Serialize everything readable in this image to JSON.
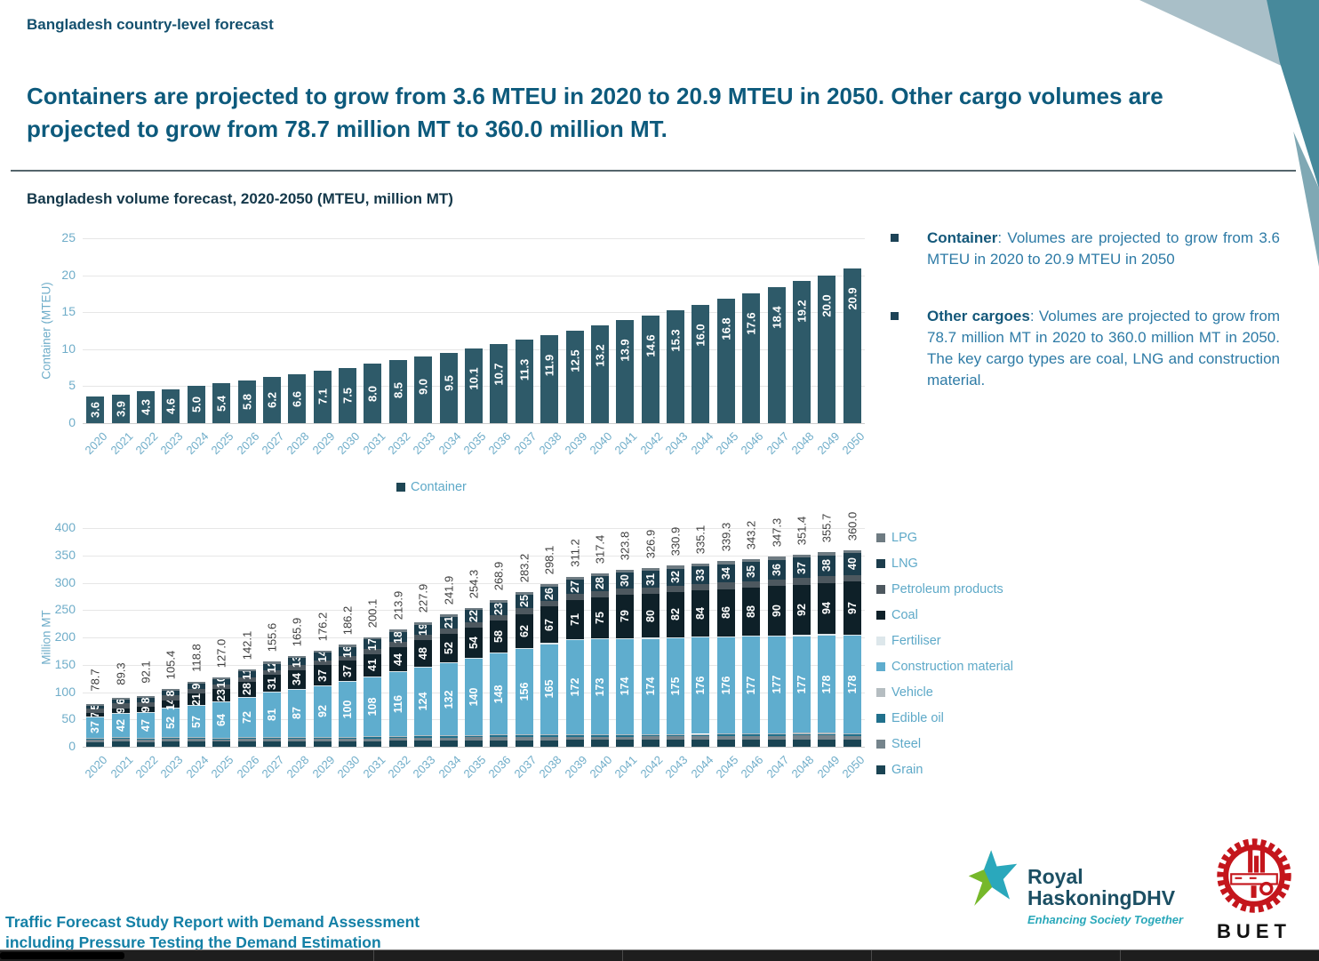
{
  "slide": {
    "eyebrow": "Bangladesh country-level forecast",
    "title": "Containers are projected to grow from 3.6 MTEU in 2020 to 20.9 MTEU in 2050. Other cargo volumes are projected to grow from 78.7 million MT to 360.0 million MT.",
    "section_title": "Bangladesh volume forecast, 2020-2050 (MTEU, million MT)"
  },
  "bullets": [
    {
      "lead": "Container",
      "text": ": Volumes are projected to grow from 3.6 MTEU in 2020 to 20.9 MTEU in 2050"
    },
    {
      "lead": "Other cargoes",
      "text": ": Volumes are projected to grow from 78.7 million MT in 2020 to 360.0 million MT in 2050. The key cargo types are coal, LNG and construction material."
    }
  ],
  "footer": {
    "line1": "Traffic Forecast Study Report with Demand Assessment",
    "line2": "including Pressure Testing the Demand Estimation"
  },
  "logos": {
    "rhdhv": {
      "name_top": "Royal",
      "name_bottom": "HaskoningDHV",
      "tagline": "Enhancing Society Together"
    },
    "buet": {
      "label": "BUET"
    }
  },
  "chart_data": [
    {
      "type": "bar",
      "title": "Bangladesh volume forecast, 2020-2050 (MTEU, million MT)",
      "ylabel": "Container (MTEU)",
      "xlabel": "",
      "ylim": [
        0,
        25
      ],
      "yticks": [
        0,
        5,
        10,
        15,
        20,
        25
      ],
      "grid": true,
      "legend": [
        "Container"
      ],
      "legend_position": "bottom",
      "bar_color": "#2e5a69",
      "categories": [
        "2020",
        "2021",
        "2022",
        "2023",
        "2024",
        "2025",
        "2026",
        "2027",
        "2028",
        "2029",
        "2030",
        "2031",
        "2032",
        "2033",
        "2034",
        "2035",
        "2036",
        "2037",
        "2038",
        "2039",
        "2040",
        "2041",
        "2042",
        "2043",
        "2044",
        "2045",
        "2046",
        "2047",
        "2048",
        "2049",
        "2050"
      ],
      "values": [
        3.6,
        3.9,
        4.3,
        4.6,
        5.0,
        5.4,
        5.8,
        6.2,
        6.6,
        7.1,
        7.5,
        8.0,
        8.5,
        9.0,
        9.5,
        10.1,
        10.7,
        11.3,
        11.9,
        12.5,
        13.2,
        13.9,
        14.6,
        15.3,
        16.0,
        16.8,
        17.6,
        18.4,
        19.2,
        20.0,
        20.9
      ]
    },
    {
      "type": "bar",
      "stacked": true,
      "ylabel": "Million MT",
      "xlabel": "",
      "ylim": [
        0,
        400
      ],
      "yticks": [
        0,
        50,
        100,
        150,
        200,
        250,
        300,
        350,
        400
      ],
      "grid": true,
      "legend_position": "right",
      "categories": [
        "2020",
        "2021",
        "2022",
        "2023",
        "2024",
        "2025",
        "2026",
        "2027",
        "2028",
        "2029",
        "2030",
        "2031",
        "2032",
        "2033",
        "2034",
        "2035",
        "2036",
        "2037",
        "2038",
        "2039",
        "2040",
        "2041",
        "2042",
        "2043",
        "2044",
        "2045",
        "2046",
        "2047",
        "2048",
        "2049",
        "2050"
      ],
      "totals": [
        78.7,
        89.3,
        92.1,
        105.4,
        118.8,
        127.0,
        142.1,
        155.6,
        165.9,
        176.2,
        186.2,
        200.1,
        213.9,
        227.9,
        241.9,
        254.3,
        268.9,
        283.2,
        298.1,
        311.2,
        317.4,
        323.8,
        326.9,
        330.9,
        335.1,
        339.3,
        343.2,
        347.3,
        351.4,
        355.7,
        360.0
      ],
      "series": [
        {
          "name": "Construction material",
          "labels_shown": true,
          "values": [
            37,
            42,
            47,
            52,
            57,
            64,
            72,
            81,
            87,
            92,
            100,
            108,
            116,
            124,
            132,
            140,
            148,
            156,
            165,
            172,
            173,
            174,
            174,
            175,
            176,
            176,
            177,
            177,
            177,
            178,
            178
          ]
        },
        {
          "name": "Coal",
          "labels_shown": true,
          "values": [
            7,
            9,
            9,
            14,
            21,
            23,
            28,
            31,
            34,
            37,
            37,
            41,
            44,
            48,
            52,
            54,
            58,
            62,
            67,
            71,
            75,
            79,
            80,
            82,
            84,
            86,
            88,
            90,
            92,
            94,
            97
          ]
        },
        {
          "name": "LNG",
          "labels_shown": true,
          "values": [
            5,
            6,
            8,
            8,
            9,
            10,
            11,
            12,
            13,
            14,
            16,
            17,
            18,
            19,
            21,
            22,
            23,
            25,
            26,
            27,
            28,
            30,
            31,
            32,
            33,
            34,
            35,
            36,
            37,
            38,
            40
          ]
        }
      ],
      "legend": [
        "LPG",
        "LNG",
        "Petroleum products",
        "Coal",
        "Fertiliser",
        "Construction material",
        "Vehicle",
        "Edible oil",
        "Steel",
        "Grain"
      ],
      "stack_order_bottom_to_top": [
        "Grain",
        "Steel",
        "Edible oil",
        "Vehicle",
        "Construction material",
        "Fertiliser",
        "Coal",
        "Petroleum products",
        "LNG",
        "LPG"
      ],
      "unlabeled_share_estimate": {
        "Grain": 0.3,
        "Steel": 0.15,
        "Edible oil": 0.06,
        "Vehicle": 0.05,
        "Fertiliser": 0.05,
        "Petroleum products": 0.27,
        "LPG": 0.12
      },
      "series_colors": {
        "LPG": "#6e7b82",
        "LNG": "#1c3d4c",
        "Petroleum products": "#4d585f",
        "Coal": "#0e2028",
        "Fertiliser": "#dde7eb",
        "Construction material": "#5fadce",
        "Vehicle": "#b5bdc1",
        "Edible oil": "#20708c",
        "Steel": "#75848c",
        "Grain": "#1a4453"
      }
    }
  ]
}
